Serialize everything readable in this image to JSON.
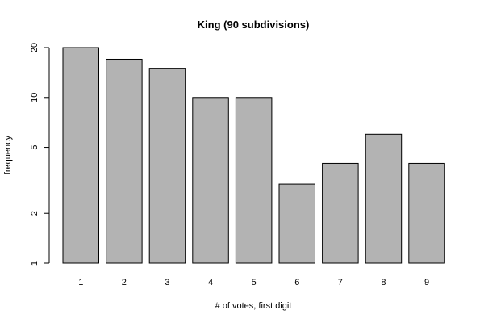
{
  "chart_data": {
    "type": "bar",
    "title": "King (90 subdivisions)",
    "xlabel": "# of votes, first digit",
    "ylabel": "frequency",
    "categories": [
      "1",
      "2",
      "3",
      "4",
      "5",
      "6",
      "7",
      "8",
      "9"
    ],
    "values": [
      20,
      17,
      15,
      10,
      10,
      3,
      4,
      6,
      4
    ],
    "yscale": "log",
    "ylim": [
      1,
      20
    ],
    "yticks": [
      1,
      2,
      5,
      10,
      20
    ],
    "ytick_labels": [
      "1",
      "2",
      "5",
      "10",
      "20"
    ],
    "grid": false,
    "legend": "none",
    "bar_color": "#b3b3b3",
    "bar_edge_color": "#000000"
  }
}
